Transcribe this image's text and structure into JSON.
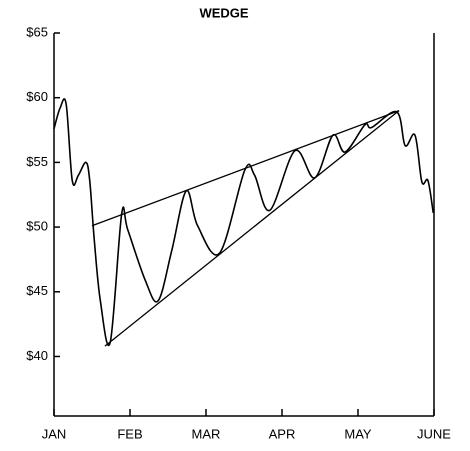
{
  "chart_data": {
    "type": "line",
    "title": "WEDGE",
    "xlim": [
      0,
      5
    ],
    "xticks": [
      {
        "value": 0,
        "label": "JAN"
      },
      {
        "value": 1,
        "label": "FEB"
      },
      {
        "value": 2,
        "label": "MAR"
      },
      {
        "value": 3,
        "label": "APR"
      },
      {
        "value": 4,
        "label": "MAY"
      },
      {
        "value": 5,
        "label": "JUNE"
      }
    ],
    "ylim": [
      35.4,
      65
    ],
    "yticks": [
      {
        "value": 40,
        "label": "$40"
      },
      {
        "value": 45,
        "label": "$45"
      },
      {
        "value": 50,
        "label": "$50"
      },
      {
        "value": 55,
        "label": "$55"
      },
      {
        "value": 60,
        "label": "$60"
      },
      {
        "value": 65,
        "label": "$65"
      }
    ],
    "color": "#000000",
    "x": [
      0,
      0.08,
      0.16,
      0.24,
      0.32,
      0.42,
      0.47,
      0.53,
      0.61,
      0.74,
      0.89,
      0.97,
      1.2,
      1.37,
      1.55,
      1.74,
      1.89,
      2.18,
      2.51,
      2.64,
      2.84,
      3.17,
      3.43,
      3.67,
      3.83,
      4.09,
      4.18,
      4.51,
      4.62,
      4.75,
      4.84,
      4.92,
      4.99
    ],
    "values": [
      57.6,
      59.2,
      59.5,
      53.6,
      54.0,
      55.0,
      53.6,
      49.0,
      44.3,
      41.1,
      51.0,
      49.8,
      45.9,
      44.3,
      48.2,
      52.8,
      50.1,
      48.0,
      54.4,
      54.0,
      51.3,
      55.9,
      53.8,
      57.1,
      55.8,
      57.9,
      57.7,
      58.9,
      56.3,
      57.1,
      53.5,
      53.6,
      51.1
    ],
    "trendlines": [
      {
        "x": [
          0.5,
          4.54
        ],
        "values": [
          50.1,
          59.0
        ]
      },
      {
        "x": [
          0.67,
          4.54
        ],
        "values": [
          40.8,
          59.0
        ]
      }
    ]
  }
}
